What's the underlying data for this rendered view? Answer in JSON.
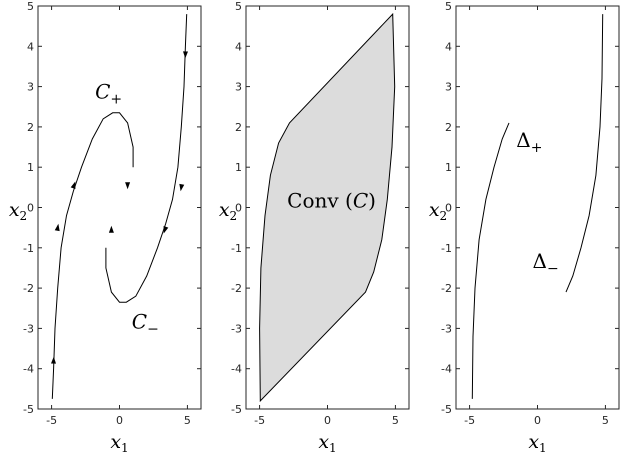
{
  "chart_data": [
    {
      "type": "line",
      "panel": "left",
      "xlabel": {
        "symbol": "x",
        "sub": "1"
      },
      "ylabel": {
        "symbol": "x",
        "sub": "2"
      },
      "xlim": [
        -6,
        6
      ],
      "ylim": [
        -5,
        5
      ],
      "xticks": [
        -5,
        0,
        5
      ],
      "yticks": [
        -5,
        -4,
        -3,
        -2,
        -1,
        0,
        1,
        2,
        3,
        4,
        5
      ],
      "grid": false,
      "annotations": [
        {
          "base": "C",
          "sub": "+",
          "x": -0.8,
          "y": 2.7
        },
        {
          "base": "C",
          "sub": "−",
          "x": 1.9,
          "y": -3.0
        }
      ],
      "series": [
        {
          "points": [
            [
              1.0,
              1.0
            ],
            [
              1.0,
              1.5
            ],
            [
              0.6,
              2.1
            ],
            [
              0.0,
              2.35
            ],
            [
              -0.5,
              2.35
            ],
            [
              -1.2,
              2.2
            ],
            [
              -2.0,
              1.7
            ],
            [
              -2.8,
              1.0
            ],
            [
              -3.4,
              0.4
            ],
            [
              -3.9,
              -0.2
            ],
            [
              -4.3,
              -1.0
            ],
            [
              -4.55,
              -2.0
            ],
            [
              -4.75,
              -3.0
            ],
            [
              -4.85,
              -4.0
            ],
            [
              -4.95,
              -4.75
            ]
          ],
          "arrows": [
            [
              -3.35,
              0.55
            ],
            [
              -4.55,
              -0.5
            ],
            [
              -4.85,
              -3.8
            ],
            [
              0.6,
              0.55
            ]
          ]
        },
        {
          "points": [
            [
              -1.0,
              -1.0
            ],
            [
              -1.0,
              -1.5
            ],
            [
              -0.6,
              -2.1
            ],
            [
              0.0,
              -2.35
            ],
            [
              0.5,
              -2.35
            ],
            [
              1.2,
              -2.2
            ],
            [
              2.0,
              -1.7
            ],
            [
              2.8,
              -1.0
            ],
            [
              3.4,
              -0.4
            ],
            [
              3.9,
              0.2
            ],
            [
              4.3,
              1.0
            ],
            [
              4.55,
              2.0
            ],
            [
              4.75,
              3.0
            ],
            [
              4.85,
              4.0
            ],
            [
              4.95,
              4.8
            ]
          ],
          "arrows": [
            [
              3.35,
              -0.55
            ],
            [
              4.55,
              0.5
            ],
            [
              4.85,
              3.8
            ],
            [
              -0.6,
              -0.55
            ]
          ]
        }
      ]
    },
    {
      "type": "area",
      "panel": "middle",
      "xlabel": {
        "symbol": "x",
        "sub": "1"
      },
      "ylabel": {
        "symbol": "x",
        "sub": "2"
      },
      "xlim": [
        -6,
        6
      ],
      "ylim": [
        -5,
        5
      ],
      "xticks": [
        -5,
        0,
        5
      ],
      "yticks": [
        -5,
        -4,
        -3,
        -2,
        -1,
        0,
        1,
        2,
        3,
        4,
        5
      ],
      "grid": false,
      "fill": "#dcdcdc",
      "annotations": [
        {
          "text": "Conv (",
          "italic": "C",
          "close": ")",
          "x": 0.3,
          "y": 0.0
        }
      ],
      "polygon": [
        [
          -4.95,
          -4.8
        ],
        [
          -5.0,
          -3.0
        ],
        [
          -4.9,
          -1.5
        ],
        [
          -4.6,
          -0.2
        ],
        [
          -4.2,
          0.8
        ],
        [
          -3.6,
          1.6
        ],
        [
          -2.8,
          2.1
        ],
        [
          4.8,
          4.8
        ],
        [
          4.95,
          3.0
        ],
        [
          4.75,
          1.5
        ],
        [
          4.4,
          0.2
        ],
        [
          4.0,
          -0.8
        ],
        [
          3.4,
          -1.6
        ],
        [
          2.8,
          -2.1
        ],
        [
          -4.95,
          -4.8
        ]
      ]
    },
    {
      "type": "line",
      "panel": "right",
      "xlabel": {
        "symbol": "x",
        "sub": "1"
      },
      "ylabel": {
        "symbol": "x",
        "sub": "2"
      },
      "xlim": [
        -6,
        6
      ],
      "ylim": [
        -5,
        5
      ],
      "xticks": [
        -5,
        0,
        5
      ],
      "yticks": [
        -5,
        -4,
        -3,
        -2,
        -1,
        0,
        1,
        2,
        3,
        4,
        5
      ],
      "grid": false,
      "annotations": [
        {
          "base": "Δ",
          "sub": "+",
          "x": -0.6,
          "y": 1.5
        },
        {
          "base": "Δ",
          "sub": "−",
          "x": 0.6,
          "y": -1.5
        }
      ],
      "series": [
        {
          "points": [
            [
              -2.1,
              2.1
            ],
            [
              -2.6,
              1.7
            ],
            [
              -3.2,
              1.0
            ],
            [
              -3.8,
              0.2
            ],
            [
              -4.3,
              -0.8
            ],
            [
              -4.6,
              -2.0
            ],
            [
              -4.75,
              -3.2
            ],
            [
              -4.8,
              -4.75
            ]
          ]
        },
        {
          "points": [
            [
              2.1,
              -2.1
            ],
            [
              2.6,
              -1.7
            ],
            [
              3.2,
              -1.0
            ],
            [
              3.8,
              -0.2
            ],
            [
              4.3,
              0.8
            ],
            [
              4.6,
              2.0
            ],
            [
              4.75,
              3.2
            ],
            [
              4.8,
              4.8
            ]
          ]
        }
      ]
    }
  ]
}
